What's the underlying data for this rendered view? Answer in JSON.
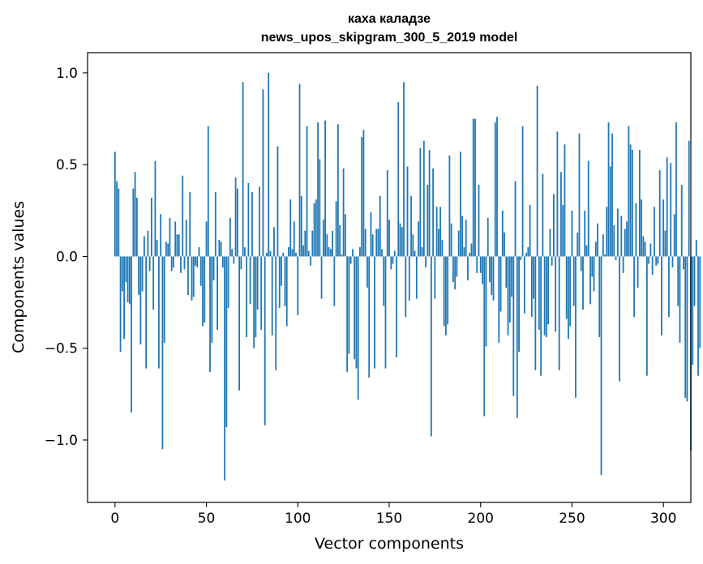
{
  "chart_data": {
    "type": "bar",
    "title": "каха каладзе",
    "subtitle": "news_upos_skipgram_300_5_2019 model",
    "xlabel": "Vector components",
    "ylabel": "Components values",
    "xlim": [
      -15,
      315
    ],
    "ylim": [
      -1.34,
      1.11
    ],
    "xticks": [
      0,
      50,
      100,
      150,
      200,
      250,
      300
    ],
    "xtick_labels": [
      "0",
      "50",
      "100",
      "150",
      "200",
      "250",
      "300"
    ],
    "yticks": [
      -1.0,
      -0.5,
      0.0,
      0.5,
      1.0
    ],
    "ytick_labels": [
      "−1.0",
      "−0.5",
      "0.0",
      "0.5",
      "1.0"
    ],
    "grid": false,
    "color": "#1f77b4",
    "values": [
      0.57,
      0.41,
      0.37,
      -0.52,
      -0.19,
      -0.45,
      -0.14,
      -0.25,
      -0.26,
      -0.85,
      0.37,
      0.46,
      0.32,
      -0.21,
      -0.48,
      -0.19,
      0.11,
      -0.61,
      0.14,
      -0.08,
      0.32,
      -0.29,
      0.52,
      0.09,
      -0.61,
      0.23,
      -1.05,
      -0.47,
      0.08,
      0.07,
      0.21,
      -0.08,
      -0.06,
      0.19,
      0.12,
      0.12,
      -0.09,
      0.44,
      -0.07,
      0.2,
      -0.21,
      0.35,
      -0.24,
      -0.22,
      -0.05,
      -0.06,
      0.05,
      -0.16,
      -0.38,
      -0.36,
      0.19,
      0.71,
      -0.63,
      -0.47,
      -0.13,
      0.35,
      -0.4,
      0.09,
      0.08,
      -0.06,
      -1.22,
      -0.93,
      -0.28,
      0.21,
      0.04,
      -0.04,
      0.43,
      0.37,
      -0.73,
      -0.07,
      0.95,
      0.05,
      -0.44,
      0.4,
      -0.26,
      0.35,
      -0.5,
      -0.44,
      -0.29,
      0.38,
      -0.4,
      0.91,
      -0.92,
      0.02,
      1.0,
      0.03,
      -0.43,
      0.16,
      -0.62,
      0.6,
      -0.28,
      -0.16,
      0.02,
      -0.27,
      -0.38,
      0.05,
      0.31,
      0.04,
      0.19,
      0.02,
      -0.32,
      0.94,
      0.33,
      0.06,
      0.14,
      0.71,
      0.03,
      -0.05,
      0.14,
      0.29,
      0.31,
      0.73,
      0.53,
      -0.23,
      0.2,
      0.74,
      0.12,
      0.05,
      0.04,
      0.14,
      -0.27,
      0.3,
      0.72,
      0.17,
      0.01,
      0.48,
      0.23,
      -0.63,
      -0.53,
      -0.04,
      0.04,
      -0.56,
      -0.61,
      -0.78,
      0.05,
      0.65,
      0.69,
      0.15,
      -0.17,
      -0.66,
      0.24,
      0.12,
      -0.61,
      0.15,
      0.15,
      0.33,
      0.04,
      -0.27,
      -0.61,
      0.47,
      0.2,
      -0.07,
      -0.04,
      0.03,
      -0.55,
      0.84,
      0.18,
      0.16,
      0.95,
      -0.33,
      0.49,
      -0.24,
      0.33,
      0.12,
      0.03,
      -0.23,
      0.19,
      0.59,
      0.05,
      0.63,
      -0.06,
      0.39,
      0.58,
      -0.98,
      0.48,
      -0.23,
      0.27,
      0.15,
      0.27,
      0.09,
      -0.38,
      -0.43,
      -0.37,
      0.55,
      0.18,
      -0.14,
      -0.18,
      -0.11,
      0.14,
      0.57,
      0.22,
      0.05,
      0.2,
      -0.13,
      0.02,
      0.07,
      0.75,
      0.75,
      -0.09,
      0.39,
      -0.09,
      -0.15,
      -0.87,
      -0.49,
      0.21,
      -0.14,
      -0.21,
      -0.24,
      0.73,
      0.76,
      -0.47,
      -0.3,
      0.25,
      0.13,
      -0.17,
      -0.43,
      -0.36,
      -0.22,
      -0.76,
      0.41,
      -0.88,
      -0.52,
      -0.02,
      0.71,
      -0.31,
      0.02,
      0.05,
      0.28,
      -0.33,
      -0.23,
      -0.62,
      0.93,
      -0.4,
      -0.65,
      0.45,
      -0.43,
      -0.44,
      -0.37,
      0.15,
      -0.05,
      0.34,
      -0.41,
      0.68,
      -0.62,
      0.46,
      0.28,
      0.61,
      -0.34,
      -0.45,
      -0.38,
      0.25,
      -0.27,
      -0.77,
      0.13,
      0.67,
      -0.08,
      -0.29,
      0.25,
      0.06,
      0.52,
      -0.26,
      -0.11,
      -0.19,
      0.08,
      0.18,
      -0.44,
      -1.19,
      0.12,
      0.01,
      0.27,
      0.73,
      0.49,
      0.67,
      0.17,
      -0.02,
      0.26,
      -0.68,
      0.22,
      -0.09,
      0.15,
      0.19,
      0.71,
      0.61,
      0.58,
      -0.33,
      0.29,
      -0.17,
      0.58,
      0.31,
      0.11,
      0.08,
      -0.65,
      -0.04,
      0.07,
      -0.1,
      0.27,
      -0.05,
      -0.04,
      0.47,
      -0.43,
      0.31,
      0.14,
      0.54,
      -0.33,
      0.51,
      -0.06,
      0.23,
      0.73,
      -0.27,
      -0.47,
      0.39,
      -0.07,
      -0.77,
      -0.79,
      0.63,
      -1.06,
      -0.59,
      -0.27,
      0.09,
      -0.65,
      -0.5
    ]
  }
}
